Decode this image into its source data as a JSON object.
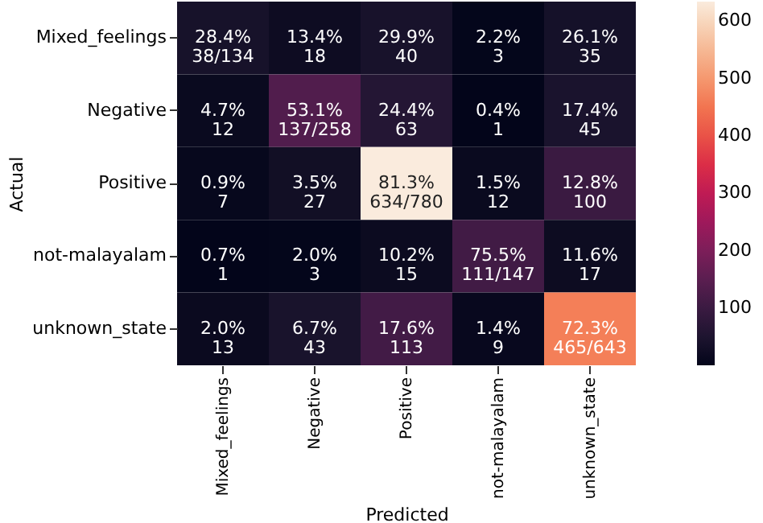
{
  "chart_data": {
    "type": "heatmap",
    "xlabel": "Predicted",
    "ylabel": "Actual",
    "categories": [
      "Mixed_feelings",
      "Negative",
      "Positive",
      "not-malayalam",
      "unknown_state"
    ],
    "y_categories": [
      "Mixed_feelings",
      "Negative",
      "Positive",
      "not-malayalam",
      "unknown_state"
    ],
    "cells": [
      [
        38,
        18,
        40,
        3,
        35
      ],
      [
        12,
        137,
        63,
        1,
        45
      ],
      [
        7,
        27,
        634,
        12,
        100
      ],
      [
        1,
        3,
        15,
        111,
        17
      ],
      [
        13,
        43,
        113,
        9,
        465
      ]
    ],
    "cell_labels": [
      [
        "28.4%\n38/134",
        "13.4%\n18",
        "29.9%\n40",
        "2.2%\n3",
        "26.1%\n35"
      ],
      [
        "4.7%\n12",
        "53.1%\n137/258",
        "24.4%\n63",
        "0.4%\n1",
        "17.4%\n45"
      ],
      [
        "0.9%\n7",
        "3.5%\n27",
        "81.3%\n634/780",
        "1.5%\n12",
        "12.8%\n100"
      ],
      [
        "0.7%\n1",
        "2.0%\n3",
        "10.2%\n15",
        "75.5%\n111/147",
        "11.6%\n17"
      ],
      [
        "2.0%\n13",
        "6.7%\n43",
        "17.6%\n113",
        "1.4%\n9",
        "72.3%\n465/643"
      ]
    ],
    "clim": [
      1,
      634
    ],
    "cticks": [
      100,
      200,
      300,
      400,
      500,
      600
    ]
  }
}
